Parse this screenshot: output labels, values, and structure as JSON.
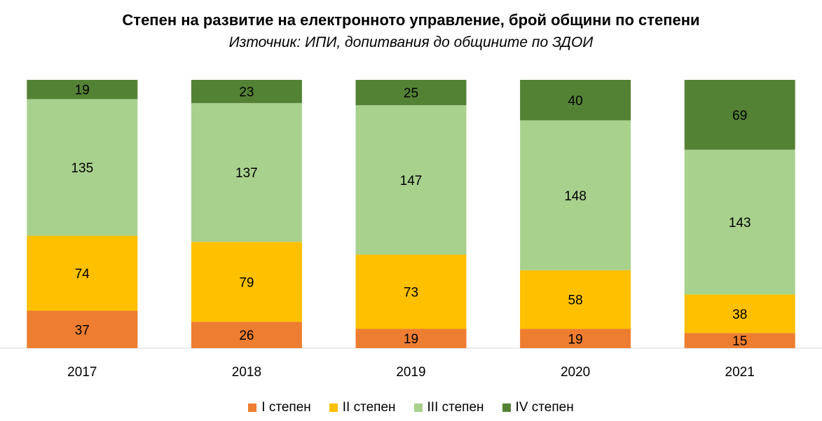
{
  "chart_data": {
    "type": "bar",
    "stacked": true,
    "title": "Степен на развитие на електронното управление, брой общини по степени",
    "subtitle": "Източник: ИПИ, допитвания до общините по ЗДОИ",
    "categories": [
      "2017",
      "2018",
      "2019",
      "2020",
      "2021"
    ],
    "series": [
      {
        "name": "I степен",
        "color": "#ED7D31",
        "values": [
          37,
          26,
          19,
          19,
          15
        ]
      },
      {
        "name": "II степен",
        "color": "#FFC000",
        "values": [
          74,
          79,
          73,
          58,
          38
        ]
      },
      {
        "name": "III степен",
        "color": "#A9D18E",
        "values": [
          135,
          137,
          147,
          148,
          143
        ]
      },
      {
        "name": "IV степен",
        "color": "#548235",
        "values": [
          19,
          23,
          25,
          40,
          69
        ]
      }
    ],
    "percent_stacked": true,
    "legend_position": "bottom",
    "grid": false
  }
}
